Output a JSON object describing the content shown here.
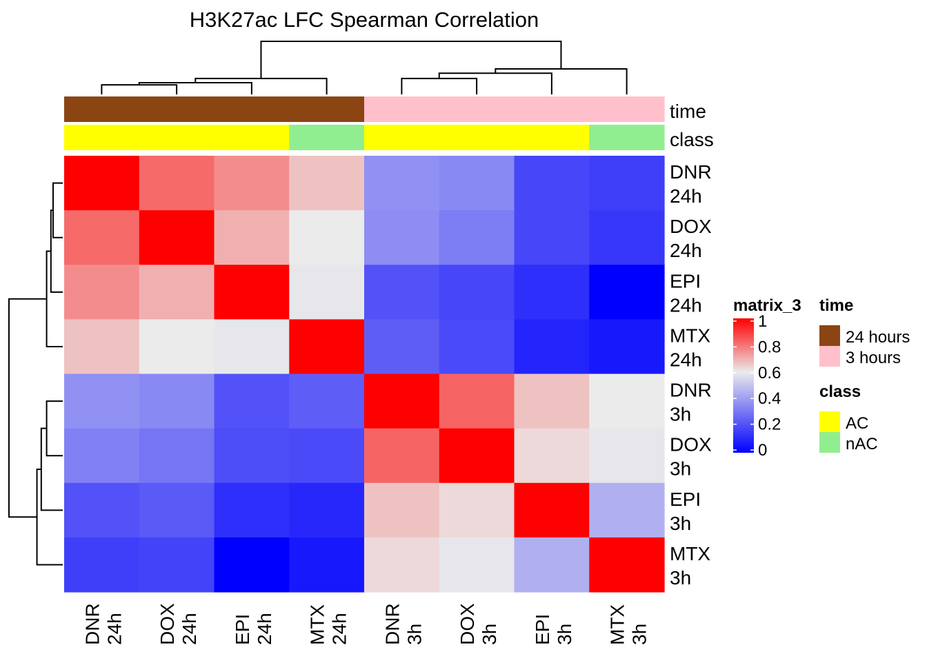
{
  "chart_data": {
    "type": "heatmap",
    "title": "H3K27ac LFC Spearman Correlation",
    "rows": [
      [
        "DNR",
        "24h"
      ],
      [
        "DOX",
        "24h"
      ],
      [
        "EPI",
        "24h"
      ],
      [
        "MTX",
        "24h"
      ],
      [
        "DNR",
        "3h"
      ],
      [
        "DOX",
        "3h"
      ],
      [
        "EPI",
        "3h"
      ],
      [
        "MTX",
        "3h"
      ]
    ],
    "columns": [
      [
        "DNR",
        "24h"
      ],
      [
        "DOX",
        "24h"
      ],
      [
        "EPI",
        "24h"
      ],
      [
        "MTX",
        "24h"
      ],
      [
        "DNR",
        "3h"
      ],
      [
        "DOX",
        "3h"
      ],
      [
        "EPI",
        "3h"
      ],
      [
        "MTX",
        "3h"
      ]
    ],
    "values": [
      [
        1.0,
        0.82,
        0.76,
        0.67,
        0.37,
        0.35,
        0.18,
        0.16
      ],
      [
        0.82,
        1.0,
        0.7,
        0.6,
        0.36,
        0.32,
        0.18,
        0.14
      ],
      [
        0.76,
        0.7,
        1.0,
        0.59,
        0.21,
        0.18,
        0.12,
        0.0
      ],
      [
        0.67,
        0.6,
        0.59,
        1.0,
        0.24,
        0.19,
        0.09,
        0.06
      ],
      [
        0.37,
        0.35,
        0.21,
        0.24,
        1.0,
        0.83,
        0.67,
        0.6
      ],
      [
        0.33,
        0.3,
        0.2,
        0.19,
        0.83,
        1.0,
        0.63,
        0.59
      ],
      [
        0.21,
        0.23,
        0.12,
        0.1,
        0.67,
        0.63,
        1.0,
        0.45
      ],
      [
        0.16,
        0.17,
        0.0,
        0.06,
        0.63,
        0.59,
        0.45,
        1.0
      ]
    ],
    "colorscale": {
      "min": 0,
      "mid": 0.6,
      "max": 1,
      "low": "#0000FF",
      "midColor": "#EBEBEB",
      "high": "#FF0000"
    },
    "annotations": {
      "time": [
        "24 hours",
        "24 hours",
        "24 hours",
        "24 hours",
        "3 hours",
        "3 hours",
        "3 hours",
        "3 hours"
      ],
      "class": [
        "AC",
        "AC",
        "AC",
        "nAC",
        "AC",
        "AC",
        "AC",
        "nAC"
      ]
    },
    "annotation_labels": [
      "time",
      "class"
    ],
    "legend_colorbar": {
      "title": "matrix_3",
      "ticks": [
        "0",
        "0.2",
        "0.4",
        "0.6",
        "0.8",
        "1"
      ],
      "tick_values": [
        0,
        0.2,
        0.4,
        0.6,
        0.8,
        1
      ]
    },
    "legend_time": {
      "title": "time",
      "entries": [
        {
          "label": "24 hours",
          "color": "#8B4513"
        },
        {
          "label": "3 hours",
          "color": "#FFC0CB"
        }
      ]
    },
    "legend_class": {
      "title": "class",
      "entries": [
        {
          "label": "AC",
          "color": "#FFFF00"
        },
        {
          "label": "nAC",
          "color": "#90EE90"
        }
      ]
    },
    "dendrogram": {
      "merge_heights": [
        0.18,
        0.22,
        0.3,
        0.3,
        0.4,
        0.48,
        1.0
      ],
      "left_pairs": [
        [
          0,
          1
        ],
        [
          0,
          1,
          2
        ],
        [
          0,
          1,
          2,
          3
        ],
        [
          4,
          5
        ],
        [
          4,
          5,
          6
        ],
        [
          4,
          5,
          6,
          7
        ],
        [
          0,
          1,
          2,
          3,
          4,
          5,
          6,
          7
        ]
      ]
    }
  }
}
